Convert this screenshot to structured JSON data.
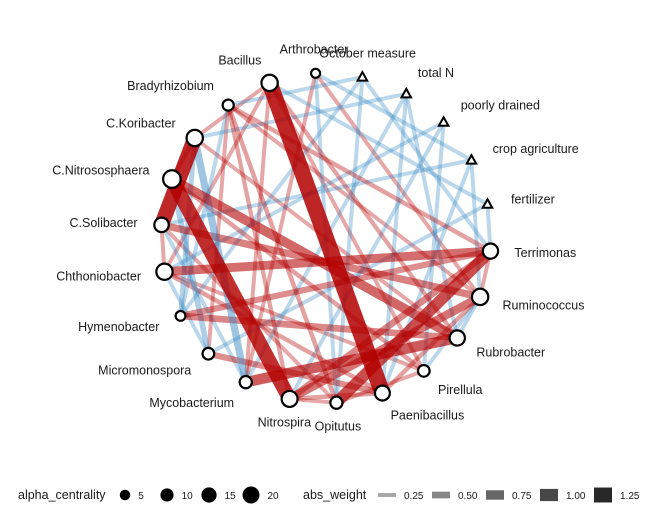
{
  "network": {
    "nodes": [
      {
        "id": "C.Koribacter",
        "label": "C.Koribacter",
        "shape": "circle",
        "centrality": 18
      },
      {
        "id": "Bradyrhizobium",
        "label": "Bradyrhizobium",
        "shape": "circle",
        "centrality": 6
      },
      {
        "id": "Bacillus",
        "label": "Bacillus",
        "shape": "circle",
        "centrality": 18
      },
      {
        "id": "Arthrobacter",
        "label": "Arthrobacter",
        "shape": "circle",
        "centrality": 3
      },
      {
        "id": "October measure",
        "label": "October measure",
        "shape": "triangle",
        "centrality": 0
      },
      {
        "id": "total N",
        "label": "total N",
        "shape": "triangle",
        "centrality": 0
      },
      {
        "id": "poorly drained",
        "label": "poorly drained",
        "shape": "triangle",
        "centrality": 0
      },
      {
        "id": "crop agriculture",
        "label": "crop agriculture",
        "shape": "triangle",
        "centrality": 0
      },
      {
        "id": "fertilizer",
        "label": "fertilizer",
        "shape": "triangle",
        "centrality": 0
      },
      {
        "id": "Terrimonas",
        "label": "Terrimonas",
        "shape": "circle",
        "centrality": 15
      },
      {
        "id": "Ruminococcus",
        "label": "Ruminococcus",
        "shape": "circle",
        "centrality": 18
      },
      {
        "id": "Rubrobacter",
        "label": "Rubrobacter",
        "shape": "circle",
        "centrality": 15
      },
      {
        "id": "Pirellula",
        "label": "Pirellula",
        "shape": "circle",
        "centrality": 7
      },
      {
        "id": "Paenibacillus",
        "label": "Paenibacillus",
        "shape": "circle",
        "centrality": 14
      },
      {
        "id": "Opitutus",
        "label": "Opitutus",
        "shape": "circle",
        "centrality": 8
      },
      {
        "id": "Nitrospira",
        "label": "Nitrospira",
        "shape": "circle",
        "centrality": 17
      },
      {
        "id": "Mycobacterium",
        "label": "Mycobacterium",
        "shape": "circle",
        "centrality": 8
      },
      {
        "id": "Micromonospora",
        "label": "Micromonospora",
        "shape": "circle",
        "centrality": 7
      },
      {
        "id": "Hymenobacter",
        "label": "Hymenobacter",
        "shape": "circle",
        "centrality": 4
      },
      {
        "id": "Chthoniobacter",
        "label": "Chthoniobacter",
        "shape": "circle",
        "centrality": 18
      },
      {
        "id": "C.Solibacter",
        "label": "C.Solibacter",
        "shape": "circle",
        "centrality": 13
      },
      {
        "id": "C.Nitrososphaera",
        "label": "C.Nitrososphaera",
        "shape": "circle",
        "centrality": 22
      }
    ],
    "edges": [
      {
        "from": "Bacillus",
        "to": "Paenibacillus",
        "weight": 1.35,
        "sign": "positive"
      },
      {
        "from": "C.Nitrososphaera",
        "to": "Nitrospira",
        "weight": 1.2,
        "sign": "positive"
      },
      {
        "from": "C.Solibacter",
        "to": "C.Koribacter",
        "weight": 1.25,
        "sign": "positive"
      },
      {
        "from": "Opitutus",
        "to": "Terrimonas",
        "weight": 0.95,
        "sign": "positive"
      },
      {
        "from": "Mycobacterium",
        "to": "Rubrobacter",
        "weight": 0.85,
        "sign": "positive"
      },
      {
        "from": "C.Nitrososphaera",
        "to": "Rubrobacter",
        "weight": 0.75,
        "sign": "positive"
      },
      {
        "from": "Chthoniobacter",
        "to": "Terrimonas",
        "weight": 0.7,
        "sign": "positive"
      },
      {
        "from": "Nitrospira",
        "to": "Ruminococcus",
        "weight": 0.65,
        "sign": "positive"
      },
      {
        "from": "Hymenobacter",
        "to": "Rubrobacter",
        "weight": 0.5,
        "sign": "positive"
      },
      {
        "from": "C.Solibacter",
        "to": "Ruminococcus",
        "weight": 0.55,
        "sign": "positive"
      },
      {
        "from": "Nitrospira",
        "to": "Terrimonas",
        "weight": 0.5,
        "sign": "positive"
      },
      {
        "from": "Micromonospora",
        "to": "Paenibacillus",
        "weight": 0.45,
        "sign": "positive"
      },
      {
        "from": "Hymenobacter",
        "to": "Terrimonas",
        "weight": 0.45,
        "sign": "positive"
      },
      {
        "from": "Mycobacterium",
        "to": "C.Koribacter",
        "weight": 0.55,
        "sign": "negative"
      },
      {
        "from": "Micromonospora",
        "to": "C.Nitrososphaera",
        "weight": 0.4,
        "sign": "negative"
      },
      {
        "from": "Hymenobacter",
        "to": "C.Koribacter",
        "weight": 0.35,
        "sign": "negative"
      },
      {
        "from": "Opitutus",
        "to": "Bradyrhizobium",
        "weight": 0.3,
        "sign": "positive"
      },
      {
        "from": "Pirellula",
        "to": "C.Nitrososphaera",
        "weight": 0.3,
        "sign": "positive"
      },
      {
        "from": "Paenibacillus",
        "to": "Chthoniobacter",
        "weight": 0.3,
        "sign": "positive"
      },
      {
        "from": "Rubrobacter",
        "to": "Bacillus",
        "weight": 0.28,
        "sign": "positive"
      },
      {
        "from": "Terrimonas",
        "to": "Bradyrhizobium",
        "weight": 0.3,
        "sign": "positive"
      },
      {
        "from": "Ruminococcus",
        "to": "Arthrobacter",
        "weight": 0.25,
        "sign": "positive"
      },
      {
        "from": "Nitrospira",
        "to": "Bradyrhizobium",
        "weight": 0.28,
        "sign": "positive"
      },
      {
        "from": "Mycobacterium",
        "to": "Bacillus",
        "weight": 0.25,
        "sign": "positive"
      },
      {
        "from": "Opitutus",
        "to": "C.Solibacter",
        "weight": 0.25,
        "sign": "positive"
      },
      {
        "from": "Pirellula",
        "to": "Chthoniobacter",
        "weight": 0.25,
        "sign": "positive"
      },
      {
        "from": "Paenibacillus",
        "to": "Ruminococcus",
        "weight": 0.3,
        "sign": "positive"
      },
      {
        "from": "Nitrospira",
        "to": "Paenibacillus",
        "weight": 0.3,
        "sign": "positive"
      },
      {
        "from": "Nitrospira",
        "to": "Opitutus",
        "weight": 0.25,
        "sign": "positive"
      },
      {
        "from": "Opitutus",
        "to": "Pirellula",
        "weight": 0.25,
        "sign": "positive"
      },
      {
        "from": "Terrimonas",
        "to": "Ruminococcus",
        "weight": 0.25,
        "sign": "positive"
      },
      {
        "from": "C.Koribacter",
        "to": "Bacillus",
        "weight": 0.25,
        "sign": "positive"
      },
      {
        "from": "C.Nitrososphaera",
        "to": "C.Koribacter",
        "weight": 0.3,
        "sign": "positive"
      },
      {
        "from": "Chthoniobacter",
        "to": "C.Solibacter",
        "weight": 0.25,
        "sign": "positive"
      },
      {
        "from": "Chthoniobacter",
        "to": "Bacillus",
        "weight": 0.25,
        "sign": "positive"
      },
      {
        "from": "Micromonospora",
        "to": "Bradyrhizobium",
        "weight": 0.25,
        "sign": "positive"
      },
      {
        "from": "Mycobacterium",
        "to": "Arthrobacter",
        "weight": 0.25,
        "sign": "positive"
      },
      {
        "from": "Rubrobacter",
        "to": "C.Koribacter",
        "weight": 0.25,
        "sign": "positive"
      },
      {
        "from": "Pirellula",
        "to": "Bacillus",
        "weight": 0.25,
        "sign": "positive"
      },
      {
        "from": "Ruminococcus",
        "to": "Bradyrhizobium",
        "weight": 0.25,
        "sign": "positive"
      },
      {
        "from": "Micromonospora",
        "to": "Chthoniobacter",
        "weight": 0.25,
        "sign": "negative"
      },
      {
        "from": "Hymenobacter",
        "to": "Bradyrhizobium",
        "weight": 0.25,
        "sign": "negative"
      },
      {
        "from": "Mycobacterium",
        "to": "C.Solibacter",
        "weight": 0.25,
        "sign": "negative"
      },
      {
        "from": "Opitutus",
        "to": "Arthrobacter",
        "weight": 0.25,
        "sign": "negative"
      },
      {
        "from": "Pirellula",
        "to": "Ruminococcus",
        "weight": 0.25,
        "sign": "negative"
      },
      {
        "from": "Rubrobacter",
        "to": "Ruminococcus",
        "weight": 0.25,
        "sign": "negative"
      },
      {
        "from": "Terrimonas",
        "to": "fertilizer",
        "weight": 0.25,
        "sign": "negative"
      },
      {
        "from": "Ruminococcus",
        "to": "crop agriculture",
        "weight": 0.25,
        "sign": "negative"
      },
      {
        "from": "Paenibacillus",
        "to": "crop agriculture",
        "weight": 0.25,
        "sign": "negative"
      },
      {
        "from": "Pirellula",
        "to": "poorly drained",
        "weight": 0.25,
        "sign": "negative"
      },
      {
        "from": "Rubrobacter",
        "to": "total N",
        "weight": 0.25,
        "sign": "negative"
      },
      {
        "from": "Opitutus",
        "to": "October measure",
        "weight": 0.25,
        "sign": "negative"
      },
      {
        "from": "Nitrospira",
        "to": "poorly drained",
        "weight": 0.25,
        "sign": "negative"
      },
      {
        "from": "Mycobacterium",
        "to": "total N",
        "weight": 0.25,
        "sign": "negative"
      },
      {
        "from": "Bacillus",
        "to": "fertilizer",
        "weight": 0.25,
        "sign": "negative"
      },
      {
        "from": "Arthrobacter",
        "to": "crop agriculture",
        "weight": 0.25,
        "sign": "negative"
      },
      {
        "from": "Bradyrhizobium",
        "to": "October measure",
        "weight": 0.25,
        "sign": "negative"
      },
      {
        "from": "C.Koribacter",
        "to": "total N",
        "weight": 0.25,
        "sign": "negative"
      },
      {
        "from": "Chthoniobacter",
        "to": "poorly drained",
        "weight": 0.25,
        "sign": "negative"
      },
      {
        "from": "Micromonospora",
        "to": "fertilizer",
        "weight": 0.25,
        "sign": "negative"
      },
      {
        "from": "Hymenobacter",
        "to": "October measure",
        "weight": 0.25,
        "sign": "negative"
      },
      {
        "from": "C.Solibacter",
        "to": "crop agriculture",
        "weight": 0.25,
        "sign": "negative"
      },
      {
        "from": "October measure",
        "to": "Terrimonas",
        "weight": 0.25,
        "sign": "negative"
      },
      {
        "from": "total N",
        "to": "Paenibacillus",
        "weight": 0.25,
        "sign": "negative"
      }
    ],
    "colors": {
      "positive": "#b30000",
      "negative": "#3b8cc6",
      "node_fill": "#ffffff",
      "node_stroke": "#000000"
    }
  },
  "legend": {
    "centrality": {
      "title": "alpha_centrality",
      "items": [
        {
          "value": 5,
          "label": "5"
        },
        {
          "value": 10,
          "label": "10"
        },
        {
          "value": 15,
          "label": "15"
        },
        {
          "value": 20,
          "label": "20"
        }
      ]
    },
    "weight": {
      "title": "abs_weight",
      "items": [
        {
          "value": 0.25,
          "label": "0.25"
        },
        {
          "value": 0.5,
          "label": "0.50"
        },
        {
          "value": 0.75,
          "label": "0.75"
        },
        {
          "value": 1.0,
          "label": "1.00"
        },
        {
          "value": 1.25,
          "label": "1.25"
        }
      ]
    }
  }
}
